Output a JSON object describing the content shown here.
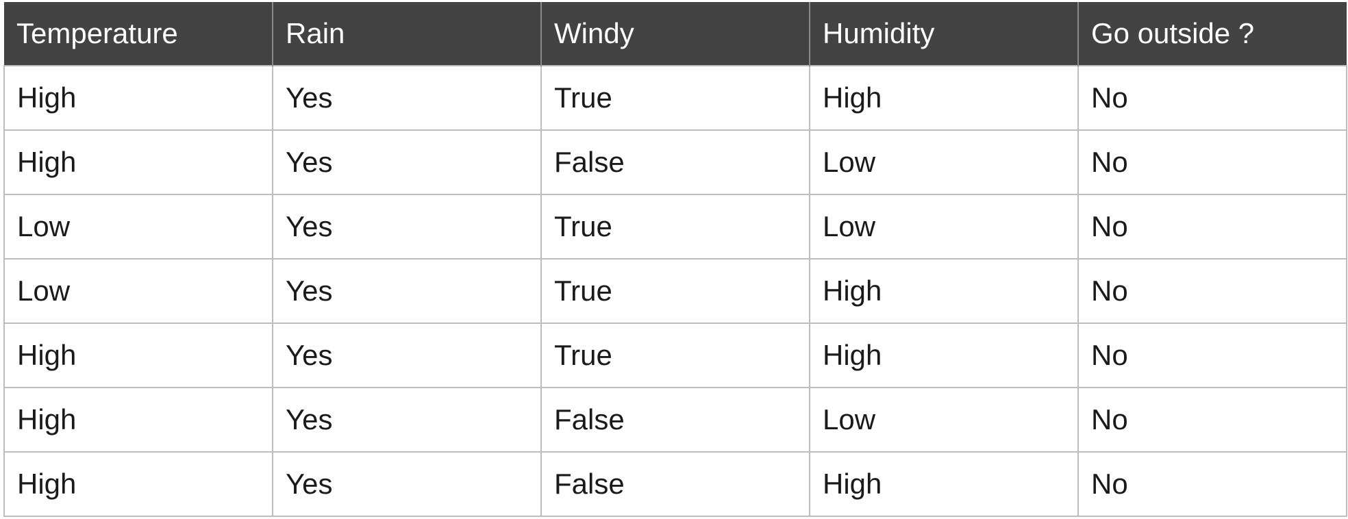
{
  "table": {
    "headers": [
      "Temperature",
      "Rain",
      "Windy",
      "Humidity",
      "Go outside ?"
    ],
    "rows": [
      [
        "High",
        "Yes",
        "True",
        "High",
        "No"
      ],
      [
        "High",
        "Yes",
        "False",
        "Low",
        "No"
      ],
      [
        "Low",
        "Yes",
        "True",
        "Low",
        "No"
      ],
      [
        "Low",
        "Yes",
        "True",
        "High",
        "No"
      ],
      [
        "High",
        "Yes",
        "True",
        "High",
        "No"
      ],
      [
        "High",
        "Yes",
        "False",
        "Low",
        "No"
      ],
      [
        "High",
        "Yes",
        "False",
        "High",
        "No"
      ]
    ]
  },
  "colors": {
    "header_background": "#434343",
    "header_text": "#ffffff",
    "grid_line": "#bdbdbd",
    "cell_text": "#1a1a1a"
  }
}
